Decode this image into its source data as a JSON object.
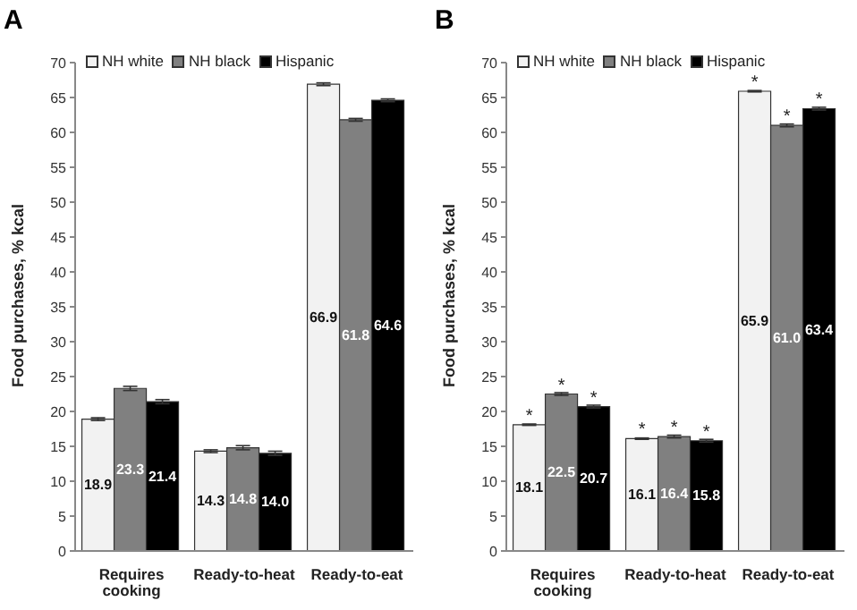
{
  "chart_data": [
    {
      "type": "bar",
      "title": "A",
      "ylabel": "Food purchases, % kcal",
      "categories": [
        "Requires cooking",
        "Ready-to-heat",
        "Ready-to-eat"
      ],
      "ylim": [
        0,
        70
      ],
      "yticks": [
        0,
        5,
        10,
        15,
        20,
        25,
        30,
        35,
        40,
        45,
        50,
        55,
        60,
        65,
        70
      ],
      "grid": false,
      "legend": "top left",
      "series": [
        {
          "name": "NH white",
          "color": "#f2f2f2",
          "values": [
            18.9,
            14.3,
            66.9
          ],
          "errors": [
            0.2,
            0.2,
            0.2
          ],
          "value_labels": [
            "18.9",
            "14.3",
            "66.9"
          ]
        },
        {
          "name": "NH black",
          "color": "#808080",
          "values": [
            23.3,
            14.8,
            61.8
          ],
          "errors": [
            0.3,
            0.3,
            0.2
          ],
          "value_labels": [
            "23.3",
            "14.8",
            "61.8"
          ]
        },
        {
          "name": "Hispanic",
          "color": "#000000",
          "values": [
            21.4,
            14.0,
            64.6
          ],
          "errors": [
            0.3,
            0.3,
            0.2
          ],
          "value_labels": [
            "21.4",
            "14.0",
            "64.6"
          ]
        }
      ]
    },
    {
      "type": "bar",
      "title": "B",
      "ylabel": "Food purchases, % kcal",
      "categories": [
        "Requires cooking",
        "Ready-to-heat",
        "Ready-to-eat"
      ],
      "ylim": [
        0,
        70
      ],
      "yticks": [
        0,
        5,
        10,
        15,
        20,
        25,
        30,
        35,
        40,
        45,
        50,
        55,
        60,
        65,
        70
      ],
      "grid": false,
      "legend": "top left",
      "series": [
        {
          "name": "NH white",
          "color": "#f2f2f2",
          "values": [
            18.1,
            16.1,
            65.9
          ],
          "errors": [
            0.1,
            0.1,
            0.1
          ],
          "value_labels": [
            "18.1",
            "16.1",
            "65.9"
          ]
        },
        {
          "name": "NH black",
          "color": "#808080",
          "values": [
            22.5,
            16.4,
            61.0
          ],
          "errors": [
            0.2,
            0.2,
            0.2
          ],
          "value_labels": [
            "22.5",
            "16.4",
            "61.0"
          ]
        },
        {
          "name": "Hispanic",
          "color": "#000000",
          "values": [
            20.7,
            15.8,
            63.4
          ],
          "errors": [
            0.2,
            0.2,
            0.2
          ],
          "value_labels": [
            "20.7",
            "15.8",
            "63.4"
          ]
        }
      ],
      "annotations": [
        "*",
        "*",
        "*",
        "*",
        "*",
        "*",
        "*",
        "*",
        "*"
      ]
    }
  ]
}
